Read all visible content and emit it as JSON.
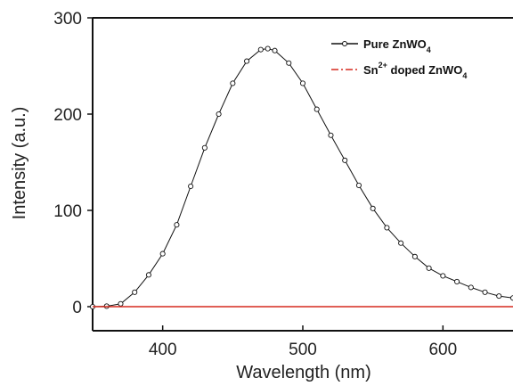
{
  "chart_data": {
    "type": "line",
    "xlabel": "Wavelength (nm)",
    "ylabel": "Intensity (a.u.)",
    "xlim": [
      350,
      650
    ],
    "ylim": [
      -25,
      300
    ],
    "xticks": [
      400,
      500,
      600
    ],
    "yticks": [
      0,
      100,
      200,
      300
    ],
    "grid": false,
    "legend": "top-right",
    "series": [
      {
        "name": "Pure ZnWO4",
        "color": "#111111",
        "marker": "open-circle",
        "x": [
          350,
          360,
          370,
          380,
          390,
          400,
          410,
          420,
          430,
          440,
          450,
          460,
          470,
          475,
          480,
          490,
          500,
          510,
          520,
          530,
          540,
          550,
          560,
          570,
          580,
          590,
          600,
          610,
          620,
          630,
          640,
          650
        ],
        "y": [
          0,
          0.5,
          3,
          15,
          33,
          55,
          85,
          125,
          165,
          200,
          232,
          255,
          267,
          268,
          266,
          253,
          232,
          205,
          178,
          152,
          126,
          102,
          82,
          66,
          52,
          40,
          32,
          26,
          20,
          15,
          11,
          9
        ]
      },
      {
        "name": "Sn2+ doped ZnWO4",
        "color": "#d62a1e",
        "marker": "none",
        "x": [
          350,
          400,
          450,
          500,
          550,
          600,
          650
        ],
        "y": [
          0,
          0,
          0,
          0,
          0,
          0,
          0
        ]
      }
    ]
  },
  "legend": {
    "pure_main": "Pure ZnWO",
    "pure_sub": "4",
    "doped_main": "Sn",
    "doped_sup": "2+",
    "doped_rest": " doped ZnWO",
    "doped_sub": "4"
  }
}
